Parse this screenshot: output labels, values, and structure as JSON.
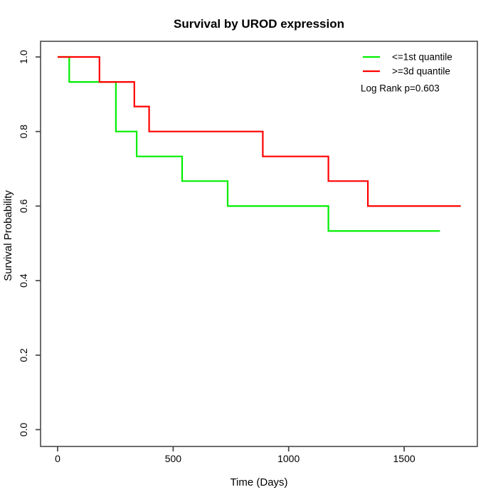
{
  "chart_data": {
    "type": "line",
    "subtype": "kaplan-meier-step",
    "title": "Survival by UROD expression",
    "xlabel": "Time (Days)",
    "ylabel": "Survival Probability",
    "x_ticks": [
      0,
      500,
      1000,
      1500
    ],
    "y_ticks": [
      0.0,
      0.2,
      0.4,
      0.6,
      0.8,
      1.0
    ],
    "y_tick_labels": [
      "0.0",
      "0.2",
      "0.4",
      "0.6",
      "0.8",
      "1.0"
    ],
    "xlim": [
      -74,
      1817
    ],
    "ylim": [
      -0.045,
      1.042
    ],
    "grid": false,
    "legend_position": "top-right",
    "annotation": "Log Rank p=0.603",
    "axis_color": "#4d4d4d",
    "series": [
      {
        "name": "<=1st quantile",
        "color": "#00ee00",
        "points": [
          [
            0,
            1.0
          ],
          [
            50,
            0.933
          ],
          [
            252,
            0.8
          ],
          [
            342,
            0.733
          ],
          [
            539,
            0.667
          ],
          [
            736,
            0.6
          ],
          [
            1172,
            0.533
          ]
        ],
        "end_time": 1655
      },
      {
        "name": ">=3d quantile",
        "color": "#ff0000",
        "points": [
          [
            0,
            1.0
          ],
          [
            181,
            0.933
          ],
          [
            332,
            0.867
          ],
          [
            396,
            0.8
          ],
          [
            888,
            0.733
          ],
          [
            1172,
            0.667
          ],
          [
            1343,
            0.6
          ]
        ],
        "end_time": 1745
      }
    ]
  }
}
